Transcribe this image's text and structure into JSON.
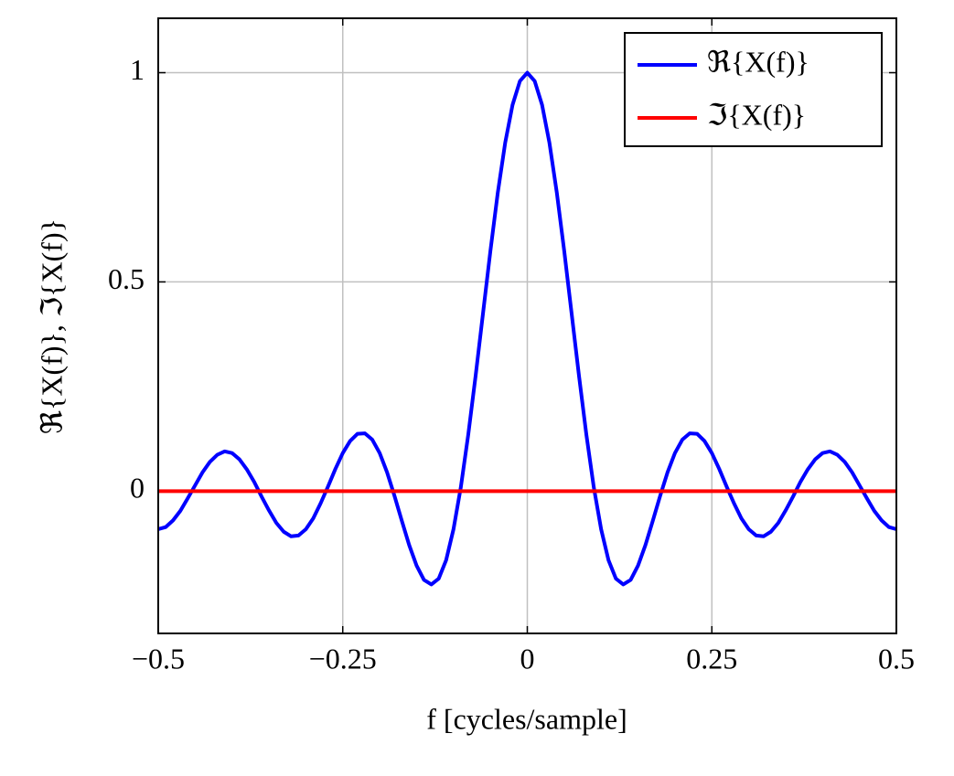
{
  "chart_data": {
    "type": "line",
    "xlabel": "f  [cycles/sample]",
    "ylabel": "ℜ{X(f)}, ℑ{X(f)}",
    "x": [
      -0.5,
      -0.49,
      -0.48,
      -0.47,
      -0.46,
      -0.45,
      -0.44,
      -0.43,
      -0.42,
      -0.41,
      -0.4,
      -0.39,
      -0.38,
      -0.37,
      -0.36,
      -0.35,
      -0.34,
      -0.33,
      -0.32,
      -0.31,
      -0.3,
      -0.29,
      -0.28,
      -0.27,
      -0.26,
      -0.25,
      -0.24,
      -0.23,
      -0.22,
      -0.21,
      -0.2,
      -0.19,
      -0.18,
      -0.17,
      -0.16,
      -0.15,
      -0.14,
      -0.13,
      -0.12,
      -0.11,
      -0.1,
      -0.09,
      -0.08,
      -0.07,
      -0.06,
      -0.05,
      -0.04,
      -0.03,
      -0.02,
      -0.01,
      0,
      0.01,
      0.02,
      0.03,
      0.04,
      0.05,
      0.06,
      0.07,
      0.08,
      0.09,
      0.1,
      0.11,
      0.12,
      0.13,
      0.14,
      0.15,
      0.16,
      0.17,
      0.18,
      0.19,
      0.2,
      0.21,
      0.22,
      0.23,
      0.24,
      0.25,
      0.26,
      0.27,
      0.28,
      0.29,
      0.3,
      0.31,
      0.32,
      0.33,
      0.34,
      0.35,
      0.36,
      0.37,
      0.38,
      0.39,
      0.4,
      0.41,
      0.42,
      0.43,
      0.44,
      0.45,
      0.46,
      0.47,
      0.48,
      0.49,
      0.5
    ],
    "series": [
      {
        "name": "ℜ{X(f)}",
        "color": "#0000ff",
        "values": [
          -0.091,
          -0.086,
          -0.07,
          -0.047,
          -0.017,
          0.014,
          0.045,
          0.07,
          0.087,
          0.095,
          0.091,
          0.076,
          0.052,
          0.022,
          -0.013,
          -0.046,
          -0.076,
          -0.097,
          -0.108,
          -0.106,
          -0.091,
          -0.065,
          -0.029,
          0.011,
          0.053,
          0.091,
          0.12,
          0.137,
          0.138,
          0.123,
          0.091,
          0.045,
          -0.011,
          -0.071,
          -0.129,
          -0.178,
          -0.212,
          -0.223,
          -0.209,
          -0.165,
          -0.091,
          0.01,
          0.135,
          0.276,
          0.425,
          0.574,
          0.713,
          0.832,
          0.923,
          0.98,
          1,
          0.98,
          0.923,
          0.832,
          0.713,
          0.574,
          0.425,
          0.276,
          0.135,
          0.01,
          -0.091,
          -0.165,
          -0.209,
          -0.223,
          -0.212,
          -0.178,
          -0.129,
          -0.071,
          -0.011,
          0.045,
          0.091,
          0.123,
          0.138,
          0.137,
          0.12,
          0.091,
          0.053,
          0.011,
          -0.029,
          -0.065,
          -0.091,
          -0.106,
          -0.108,
          -0.097,
          -0.076,
          -0.046,
          -0.013,
          0.022,
          0.052,
          0.076,
          0.091,
          0.095,
          0.087,
          0.07,
          0.045,
          0.014,
          -0.017,
          -0.047,
          -0.07,
          -0.086,
          -0.091
        ]
      },
      {
        "name": "ℑ{X(f)}",
        "color": "#ff0000",
        "values": [
          0,
          0,
          0,
          0,
          0,
          0,
          0,
          0,
          0,
          0,
          0,
          0,
          0,
          0,
          0,
          0,
          0,
          0,
          0,
          0,
          0,
          0,
          0,
          0,
          0,
          0,
          0,
          0,
          0,
          0,
          0,
          0,
          0,
          0,
          0,
          0,
          0,
          0,
          0,
          0,
          0,
          0,
          0,
          0,
          0,
          0,
          0,
          0,
          0,
          0,
          0,
          0,
          0,
          0,
          0,
          0,
          0,
          0,
          0,
          0,
          0,
          0,
          0,
          0,
          0,
          0,
          0,
          0,
          0,
          0,
          0,
          0,
          0,
          0,
          0,
          0,
          0,
          0,
          0,
          0,
          0,
          0,
          0,
          0,
          0,
          0,
          0,
          0,
          0,
          0,
          0,
          0,
          0,
          0,
          0,
          0,
          0,
          0,
          0,
          0,
          0
        ]
      }
    ],
    "xlim": [
      -0.5,
      0.5
    ],
    "ylim": [
      -0.34,
      1.13
    ],
    "xticks": [
      {
        "value": -0.5,
        "label": "−0.5"
      },
      {
        "value": -0.25,
        "label": "−0.25"
      },
      0,
      0.25,
      0.5
    ],
    "yticks": [
      0,
      0.5,
      1
    ],
    "grid": true,
    "legend": "north east"
  }
}
